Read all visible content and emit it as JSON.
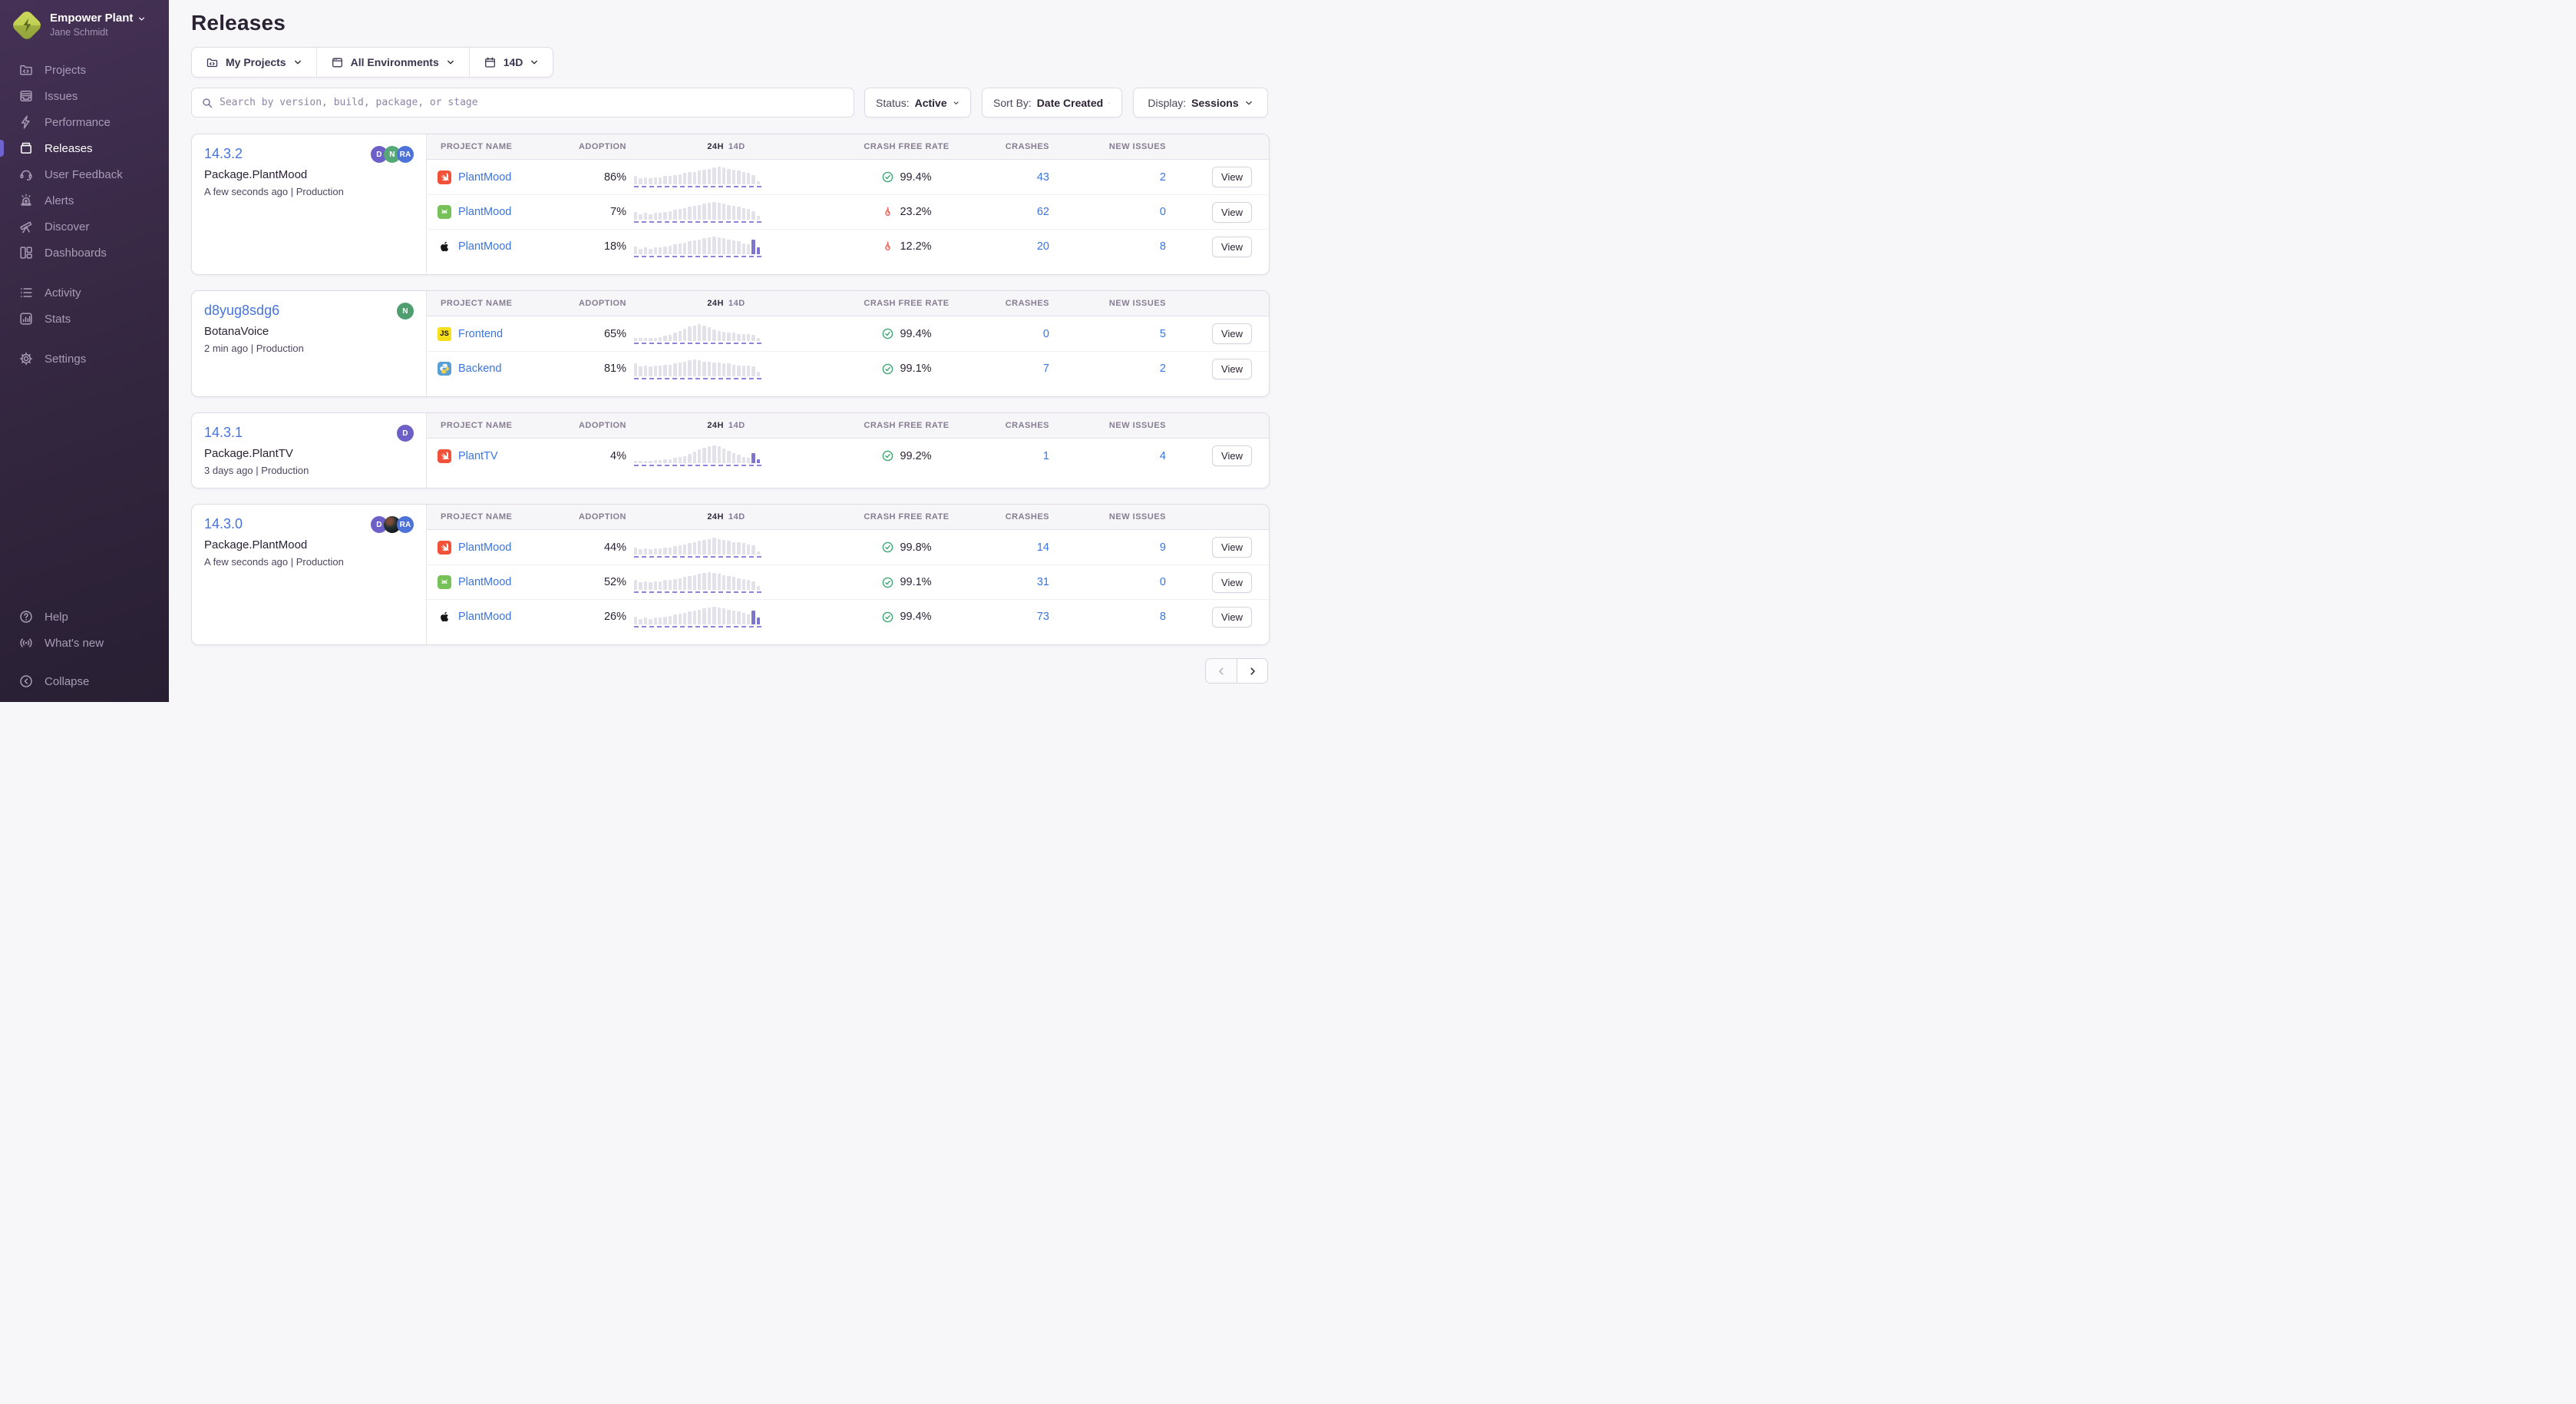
{
  "sidebar": {
    "org": {
      "name": "Empower Plant",
      "user": "Jane Schmidt"
    },
    "items": [
      {
        "id": "projects",
        "label": "Projects",
        "icon": "projects-icon",
        "active": false
      },
      {
        "id": "issues",
        "label": "Issues",
        "icon": "issues-icon",
        "active": false
      },
      {
        "id": "performance",
        "label": "Performance",
        "icon": "performance-icon",
        "active": false
      },
      {
        "id": "releases",
        "label": "Releases",
        "icon": "releases-icon",
        "active": true
      },
      {
        "id": "user-feedback",
        "label": "User Feedback",
        "icon": "user-feedback-icon",
        "active": false
      },
      {
        "id": "alerts",
        "label": "Alerts",
        "icon": "alerts-icon",
        "active": false
      },
      {
        "id": "discover",
        "label": "Discover",
        "icon": "discover-icon",
        "active": false
      },
      {
        "id": "dashboards",
        "label": "Dashboards",
        "icon": "dashboards-icon",
        "active": false
      }
    ],
    "secondary": [
      {
        "id": "activity",
        "label": "Activity",
        "icon": "activity-icon",
        "active": false
      },
      {
        "id": "stats",
        "label": "Stats",
        "icon": "stats-icon",
        "active": false
      }
    ],
    "tertiary": [
      {
        "id": "settings",
        "label": "Settings",
        "icon": "settings-icon",
        "active": false
      }
    ],
    "footer": [
      {
        "id": "help",
        "label": "Help",
        "icon": "help-icon",
        "active": false
      },
      {
        "id": "whats-new",
        "label": "What's new",
        "icon": "whats-new-icon",
        "active": false
      }
    ],
    "collapse": {
      "id": "collapse",
      "label": "Collapse",
      "icon": "collapse-icon",
      "active": false
    }
  },
  "header": {
    "title": "Releases",
    "filters": [
      {
        "id": "projects",
        "icon": "folder-code-icon",
        "value": "My Projects"
      },
      {
        "id": "environments",
        "icon": "window-icon",
        "value": "All Environments"
      },
      {
        "id": "date-range",
        "icon": "calendar-icon",
        "value": "14D"
      }
    ],
    "search_placeholder": "Search by version, build, package, or stage",
    "dropdowns": [
      {
        "label": "Status:",
        "value": "Active"
      },
      {
        "label": "Sort By:",
        "value": "Date Created"
      },
      {
        "label": "Display:",
        "value": "Sessions"
      }
    ]
  },
  "table": {
    "col_project": "Project Name",
    "col_adoption": "Adoption",
    "col_24h": "24h",
    "col_14d": "14d",
    "col_crash_free": "Crash Free Rate",
    "col_crashes": "Crashes",
    "col_new_issues": "New Issues",
    "view_label": "View"
  },
  "releases": [
    {
      "version": "14.3.2",
      "package": "Package.PlantMood",
      "meta": "A few seconds ago | Production",
      "avatars": [
        {
          "type": "initials",
          "text": "D",
          "color": "#6c5fc7"
        },
        {
          "type": "initials",
          "text": "N",
          "color": "#57a878"
        },
        {
          "type": "initials",
          "text": "RA",
          "color": "#4e73d8"
        }
      ],
      "rows": [
        {
          "platform": "swift",
          "project": "PlantMood",
          "adoption": "86%",
          "status": "ok",
          "crash_free": "99.4%",
          "crashes": "43",
          "new_issues": "2",
          "spark": [
            8,
            6,
            7,
            6,
            7,
            7,
            8,
            8,
            9,
            10,
            11,
            12,
            12,
            13,
            14,
            15,
            16,
            17,
            16,
            15,
            14,
            13,
            12,
            11,
            9,
            3
          ],
          "tail": 0
        },
        {
          "platform": "android",
          "project": "PlantMood",
          "adoption": "7%",
          "status": "bad",
          "crash_free": "23.2%",
          "crashes": "62",
          "new_issues": "0",
          "spark": [
            7,
            5,
            6,
            5,
            6,
            6,
            7,
            8,
            9,
            10,
            11,
            12,
            13,
            14,
            15,
            16,
            17,
            16,
            15,
            14,
            13,
            12,
            11,
            10,
            8,
            3
          ],
          "tail": 0
        },
        {
          "platform": "apple",
          "project": "PlantMood",
          "adoption": "18%",
          "status": "bad",
          "crash_free": "12.2%",
          "crashes": "20",
          "new_issues": "8",
          "spark": [
            7,
            5,
            6,
            5,
            6,
            6,
            7,
            8,
            9,
            10,
            11,
            12,
            13,
            14,
            15,
            16,
            17,
            16,
            15,
            14,
            13,
            12,
            10,
            9,
            14,
            6
          ],
          "tail": 2
        }
      ]
    },
    {
      "version": "d8yug8sdg6",
      "package": "BotanaVoice",
      "meta": "2 min ago | Production",
      "avatars": [
        {
          "type": "initials",
          "text": "N",
          "color": "#4f9e6f"
        }
      ],
      "rows": [
        {
          "platform": "js",
          "project": "Frontend",
          "adoption": "65%",
          "status": "ok",
          "crash_free": "99.4%",
          "crashes": "0",
          "new_issues": "5",
          "spark": [
            3,
            3,
            3,
            3,
            3,
            4,
            5,
            6,
            8,
            10,
            12,
            14,
            15,
            16,
            15,
            13,
            11,
            10,
            9,
            8,
            8,
            7,
            7,
            7,
            6,
            3
          ],
          "tail": 0
        },
        {
          "platform": "python",
          "project": "Backend",
          "adoption": "81%",
          "status": "ok",
          "crash_free": "99.1%",
          "crashes": "7",
          "new_issues": "2",
          "spark": [
            12,
            9,
            10,
            9,
            10,
            10,
            11,
            11,
            12,
            13,
            14,
            15,
            16,
            15,
            14,
            14,
            13,
            13,
            12,
            12,
            11,
            10,
            10,
            10,
            9,
            4
          ],
          "tail": 0
        }
      ]
    },
    {
      "version": "14.3.1",
      "package": "Package.PlantTV",
      "meta": "3 days ago | Production",
      "avatars": [
        {
          "type": "initials",
          "text": "D",
          "color": "#6c5fc7"
        }
      ],
      "rows": [
        {
          "platform": "swift",
          "project": "PlantTV",
          "adoption": "4%",
          "status": "ok",
          "crash_free": "99.2%",
          "crashes": "1",
          "new_issues": "4",
          "spark": [
            2,
            2,
            2,
            2,
            3,
            3,
            4,
            4,
            5,
            6,
            7,
            9,
            11,
            13,
            15,
            16,
            17,
            16,
            14,
            12,
            10,
            8,
            6,
            5,
            10,
            4
          ],
          "tail": 2
        }
      ]
    },
    {
      "version": "14.3.0",
      "package": "Package.PlantMood",
      "meta": "A few seconds ago | Production",
      "avatars": [
        {
          "type": "initials",
          "text": "D",
          "color": "#6c5fc7"
        },
        {
          "type": "photo",
          "text": "",
          "color": "#1c1d24"
        },
        {
          "type": "initials",
          "text": "RA",
          "color": "#4e73d8"
        }
      ],
      "rows": [
        {
          "platform": "swift",
          "project": "PlantMood",
          "adoption": "44%",
          "status": "ok",
          "crash_free": "99.8%",
          "crashes": "14",
          "new_issues": "9",
          "spark": [
            7,
            5,
            6,
            5,
            6,
            6,
            7,
            7,
            8,
            9,
            10,
            11,
            12,
            13,
            14,
            15,
            16,
            15,
            14,
            13,
            12,
            12,
            11,
            10,
            9,
            3
          ],
          "tail": 0
        },
        {
          "platform": "android",
          "project": "PlantMood",
          "adoption": "52%",
          "status": "ok",
          "crash_free": "99.1%",
          "crashes": "31",
          "new_issues": "0",
          "spark": [
            9,
            7,
            8,
            7,
            8,
            8,
            9,
            9,
            10,
            11,
            12,
            13,
            14,
            15,
            16,
            17,
            16,
            15,
            14,
            13,
            12,
            11,
            10,
            9,
            8,
            3
          ],
          "tail": 0
        },
        {
          "platform": "apple",
          "project": "PlantMood",
          "adoption": "26%",
          "status": "ok",
          "crash_free": "99.4%",
          "crashes": "73",
          "new_issues": "8",
          "spark": [
            7,
            5,
            6,
            5,
            6,
            6,
            7,
            8,
            9,
            10,
            11,
            12,
            13,
            14,
            15,
            16,
            17,
            16,
            15,
            14,
            13,
            12,
            11,
            9,
            13,
            6
          ],
          "tail": 2
        }
      ]
    }
  ],
  "pagination": {
    "prev_enabled": false,
    "next_enabled": true
  },
  "colors": {
    "accent_purple": "#6f63cf",
    "link_blue": "#3c74dd",
    "ok_green": "#3ea573",
    "bad_red": "#ef6358",
    "sidebar_top": "#453156",
    "sidebar_bottom": "#281f33"
  }
}
